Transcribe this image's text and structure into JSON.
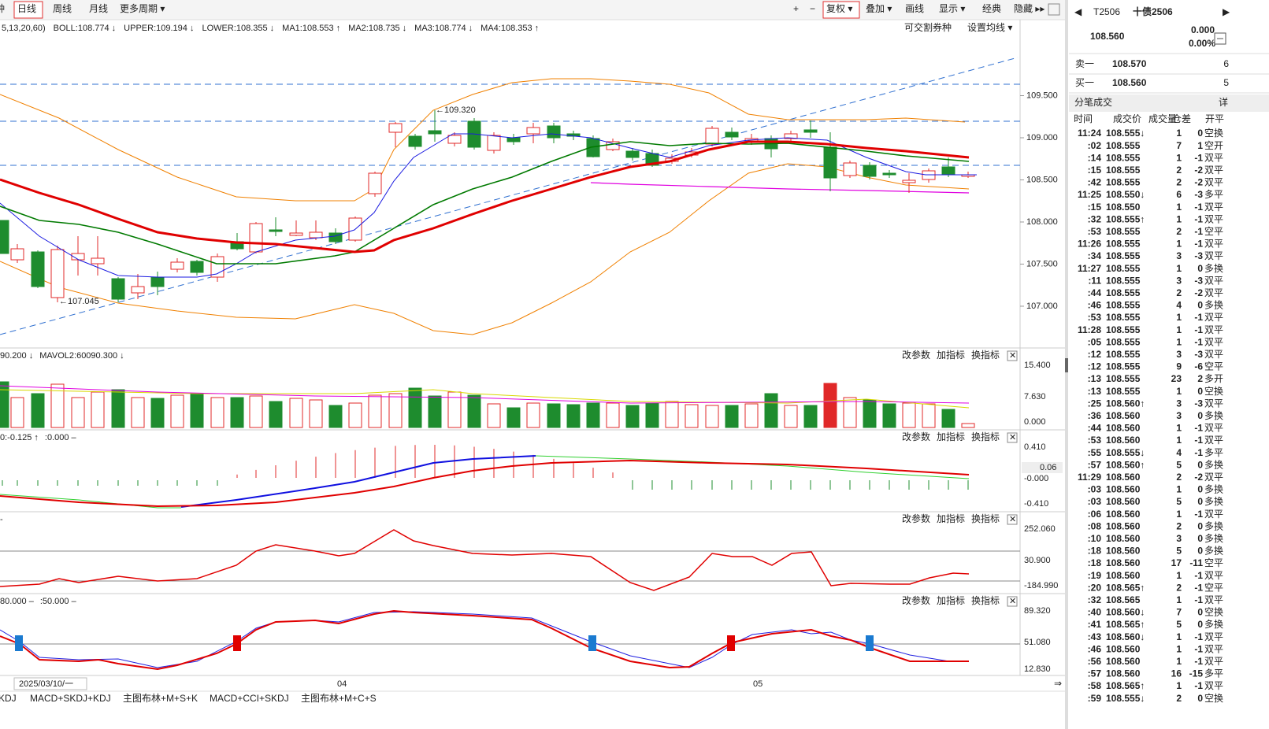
{
  "toolbar": {
    "left": [
      "钟",
      "日线",
      "周线",
      "月线",
      "更多周期 ▾"
    ],
    "right": [
      "+",
      "−",
      "复权 ▾",
      "叠加 ▾",
      "画线",
      "显示 ▾",
      "经典",
      "隐藏 ▸▸"
    ]
  },
  "indicator_bar": {
    "items": [
      {
        "text": "5,13,20,60)",
        "color": "#333333"
      },
      {
        "text": "BOLL:108.774 ↓",
        "color": "#c00000"
      },
      {
        "text": "UPPER:109.194 ↓",
        "color": "#f08000"
      },
      {
        "text": "LOWER:108.355 ↓",
        "color": "#f08000"
      },
      {
        "text": "MA1:108.553 ↑",
        "color": "#0000e0"
      },
      {
        "text": "MA2:108.735 ↓",
        "color": "#008000"
      },
      {
        "text": "MA3:108.774 ↓",
        "color": "#e00000"
      },
      {
        "text": "MA4:108.353 ↑",
        "color": "#e000e0"
      }
    ],
    "right": [
      "可交割券种",
      "设置均线 ▾"
    ]
  },
  "main_chart": {
    "ylim": [
      106.523,
      110.215
    ],
    "yticks": [
      {
        "value": 109.5,
        "label": "109.500"
      },
      {
        "value": 109,
        "label": "109.000"
      },
      {
        "value": 108.5,
        "label": "108.500"
      },
      {
        "value": 108,
        "label": "108.000"
      },
      {
        "value": 107.5,
        "label": "107.500"
      },
      {
        "value": 107,
        "label": "107.000"
      }
    ],
    "annotations": [
      "←109.320",
      "←107.045"
    ]
  },
  "panel_buttons": [
    "改参数",
    "加指标",
    "换指标",
    "✕"
  ],
  "panels": [
    {
      "legend": [
        {
          "text": "90.200 ↓",
          "color": "#c8c800"
        },
        {
          "text": "MAVOL2:60090.300 ↓",
          "color": "#e000e0"
        }
      ],
      "axis": [
        "15.400",
        "7.630",
        "0.000"
      ]
    },
    {
      "legend": [
        {
          "text": "0:-0.125 ↑",
          "color": "#e000e0"
        },
        {
          "text": ":0.000 –",
          "color": "#aaaaaa"
        }
      ],
      "axis": [
        "0.410",
        "0.06",
        "-0.000",
        "-0.410"
      ]
    },
    {
      "legend": [
        {
          "text": "-",
          "color": "#888888"
        }
      ],
      "axis": [
        "252.060",
        "30.900",
        "-184.990"
      ]
    },
    {
      "legend": [
        {
          "text": "80.000 –",
          "color": "#aaaaaa"
        },
        {
          "text": ":50.000 –",
          "color": "#888888"
        }
      ],
      "axis": [
        "89.320",
        "51.080",
        "12.830"
      ]
    }
  ],
  "dates": [
    "2025/03/10/一",
    "04",
    "05"
  ],
  "tabs": [
    "KDJ",
    "MACD+SKDJ+KDJ",
    "主图布林+M+S+K",
    "MACD+CCI+SKDJ",
    "主图布林+M+C+S"
  ],
  "quote": {
    "code": "T2506",
    "name": "十债2506",
    "price": "108.560",
    "change": "0.000",
    "pct": "0.00%",
    "sell": {
      "label": "卖一",
      "price": "108.570",
      "volume": 6
    },
    "buy": {
      "label": "买一",
      "price": "108.560",
      "volume": 5
    }
  },
  "ticks_panel": {
    "title": "分笔成交",
    "detail": "详",
    "columns": [
      "时间",
      "成交价",
      "成交量",
      "仓差",
      "开平"
    ],
    "tones": {
      "up": "#e00000",
      "down": "#008000",
      "flat": "#111111"
    },
    "rows": [
      [
        "11:24",
        "108.555↓",
        1,
        0,
        "空换",
        "down",
        "down"
      ],
      [
        ":02",
        "108.555",
        7,
        1,
        "空开",
        "down",
        "down"
      ],
      [
        ":14",
        "108.555",
        1,
        -1,
        "双平",
        "down",
        "up"
      ],
      [
        ":15",
        "108.555",
        2,
        -2,
        "双平",
        "down",
        "up"
      ],
      [
        ":42",
        "108.555",
        2,
        -2,
        "双平",
        "down",
        "up"
      ],
      [
        "11:25",
        "108.550↓",
        6,
        -3,
        "多平",
        "down",
        "down"
      ],
      [
        ":15",
        "108.550",
        1,
        -1,
        "双平",
        "down",
        "up"
      ],
      [
        ":32",
        "108.555↑",
        1,
        -1,
        "双平",
        "down",
        "up"
      ],
      [
        ":53",
        "108.555",
        2,
        -1,
        "空平",
        "down",
        "up"
      ],
      [
        "11:26",
        "108.555",
        1,
        -1,
        "双平",
        "down",
        "up"
      ],
      [
        ":34",
        "108.555",
        3,
        -3,
        "双平",
        "down",
        "up"
      ],
      [
        "11:27",
        "108.555",
        1,
        0,
        "多换",
        "down",
        "up"
      ],
      [
        ":11",
        "108.555",
        3,
        -3,
        "双平",
        "down",
        "up"
      ],
      [
        ":44",
        "108.555",
        2,
        -2,
        "双平",
        "down",
        "up"
      ],
      [
        ":46",
        "108.555",
        4,
        0,
        "多换",
        "down",
        "up"
      ],
      [
        ":53",
        "108.555",
        1,
        -1,
        "双平",
        "down",
        "up"
      ],
      [
        "11:28",
        "108.555",
        1,
        -1,
        "双平",
        "down",
        "up"
      ],
      [
        ":05",
        "108.555",
        1,
        -1,
        "双平",
        "down",
        "up"
      ],
      [
        ":12",
        "108.555",
        3,
        -3,
        "双平",
        "down",
        "up"
      ],
      [
        ":12",
        "108.555",
        9,
        -6,
        "空平",
        "down",
        "up"
      ],
      [
        ":13",
        "108.555",
        23,
        2,
        "多开",
        "down",
        "up"
      ],
      [
        ":13",
        "108.555",
        1,
        0,
        "空换",
        "down",
        "down"
      ],
      [
        ":25",
        "108.560↑",
        3,
        -3,
        "双平",
        "flat",
        "up"
      ],
      [
        ":36",
        "108.560",
        3,
        0,
        "多换",
        "flat",
        "up"
      ],
      [
        ":44",
        "108.560",
        1,
        -1,
        "双平",
        "flat",
        "up"
      ],
      [
        ":53",
        "108.560",
        1,
        -1,
        "双平",
        "flat",
        "up"
      ],
      [
        ":55",
        "108.555↓",
        4,
        -1,
        "多平",
        "down",
        "down"
      ],
      [
        ":57",
        "108.560↑",
        5,
        0,
        "多换",
        "flat",
        "up"
      ],
      [
        "11:29",
        "108.560",
        2,
        -2,
        "双平",
        "flat",
        "up"
      ],
      [
        ":03",
        "108.560",
        1,
        0,
        "多换",
        "flat",
        "up"
      ],
      [
        ":03",
        "108.560",
        5,
        0,
        "多换",
        "flat",
        "up"
      ],
      [
        ":06",
        "108.560",
        1,
        -1,
        "双平",
        "flat",
        "up"
      ],
      [
        ":08",
        "108.560",
        2,
        0,
        "多换",
        "flat",
        "up"
      ],
      [
        ":10",
        "108.560",
        3,
        0,
        "多换",
        "flat",
        "up"
      ],
      [
        ":18",
        "108.560",
        5,
        0,
        "多换",
        "flat",
        "up"
      ],
      [
        ":18",
        "108.560",
        17,
        -11,
        "空平",
        "flat",
        "up"
      ],
      [
        ":19",
        "108.560",
        1,
        -1,
        "双平",
        "flat",
        "up"
      ],
      [
        ":20",
        "108.565↑",
        2,
        -1,
        "空平",
        "up",
        "up"
      ],
      [
        ":32",
        "108.565",
        1,
        -1,
        "双平",
        "up",
        "up"
      ],
      [
        ":40",
        "108.560↓",
        7,
        0,
        "空换",
        "flat",
        "down"
      ],
      [
        ":41",
        "108.565↑",
        5,
        0,
        "多换",
        "up",
        "up"
      ],
      [
        ":43",
        "108.560↓",
        1,
        -1,
        "双平",
        "flat",
        "up"
      ],
      [
        ":46",
        "108.560",
        1,
        -1,
        "双平",
        "flat",
        "up"
      ],
      [
        ":56",
        "108.560",
        1,
        -1,
        "双平",
        "flat",
        "up"
      ],
      [
        ":57",
        "108.560",
        16,
        -15,
        "多平",
        "flat",
        "down"
      ],
      [
        ":58",
        "108.565↑",
        1,
        -1,
        "双平",
        "up",
        "up"
      ],
      [
        ":59",
        "108.555↓",
        2,
        0,
        "空换",
        "down",
        "down"
      ]
    ]
  }
}
